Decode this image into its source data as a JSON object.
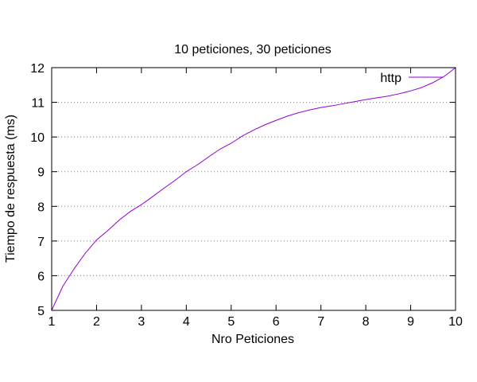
{
  "chart_data": {
    "type": "line",
    "title": "10 peticiones, 30 peticiones",
    "xlabel": "Nro Peticiones",
    "ylabel": "Tiempo de respuesta (ms)",
    "xlim": [
      1,
      10
    ],
    "ylim": [
      5,
      12
    ],
    "xticks": [
      "1",
      "2",
      "3",
      "4",
      "5",
      "6",
      "7",
      "8",
      "9",
      "10"
    ],
    "yticks": [
      "5",
      "6",
      "7",
      "8",
      "9",
      "10",
      "11",
      "12"
    ],
    "grid": "horizontal-dotted",
    "legend_position": "top-right",
    "series": [
      {
        "name": "http",
        "color": "#9400d3",
        "x": [
          1,
          1.25,
          1.5,
          1.75,
          2,
          2.25,
          2.5,
          2.75,
          3,
          3.25,
          3.5,
          3.75,
          4,
          4.25,
          4.5,
          4.75,
          5,
          5.25,
          5.5,
          5.75,
          6,
          6.25,
          6.5,
          6.75,
          7,
          7.25,
          7.5,
          7.75,
          8,
          8.25,
          8.5,
          8.75,
          9,
          9.25,
          9.5,
          9.75,
          10
        ],
        "y": [
          5.0,
          5.7,
          6.2,
          6.65,
          7.03,
          7.3,
          7.6,
          7.85,
          8.05,
          8.28,
          8.52,
          8.75,
          9.0,
          9.2,
          9.43,
          9.65,
          9.82,
          10.03,
          10.2,
          10.35,
          10.48,
          10.6,
          10.7,
          10.78,
          10.85,
          10.9,
          10.96,
          11.02,
          11.08,
          11.13,
          11.18,
          11.25,
          11.33,
          11.43,
          11.57,
          11.75,
          12.0
        ]
      }
    ]
  }
}
